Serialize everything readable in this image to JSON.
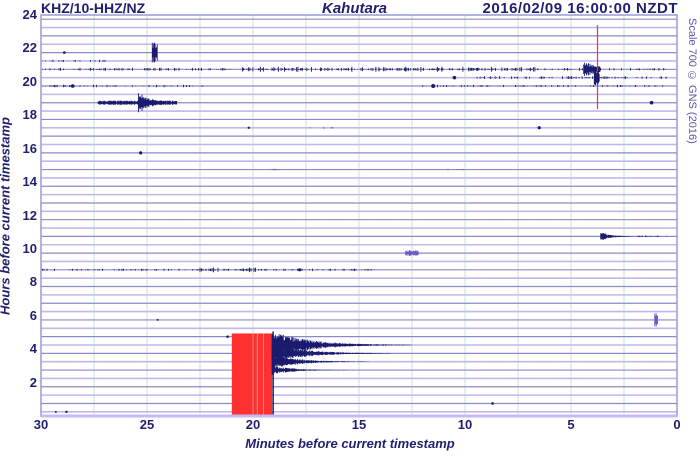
{
  "header": {
    "station": "KHZ/10-HHZ/NZ",
    "site": "Kahutara",
    "timestamp": "2016/02/09 16:00:00 NZDT",
    "scale_note": "Scale 700 © GNS (2016)"
  },
  "axes": {
    "xlabel": "Minutes before current timestamp",
    "ylabel": "Hours before current timestamp",
    "xticks": [
      "30",
      "25",
      "20",
      "15",
      "10",
      "5",
      "0"
    ],
    "yticks": [
      "24",
      "22",
      "20",
      "18",
      "16",
      "14",
      "12",
      "10",
      "8",
      "6",
      "4",
      "2"
    ]
  },
  "colors": {
    "trace": "#1a1a6e",
    "trace_light": "#6a5acd",
    "grid_vertical": "#c8e6c8",
    "trace_baseline": "#8a8ac8",
    "frame": "#9a9ad8",
    "clip_red": "#ff3030",
    "text": "#1f1f6e"
  },
  "chart_data": {
    "type": "seismogram-helicorder",
    "title": "KHZ/10-HHZ/NZ Kahutara 2016/02/09 16:00:00 NZDT",
    "xlabel": "Minutes before current timestamp",
    "ylabel": "Hours before current timestamp",
    "xlim": [
      30,
      0
    ],
    "ylim": [
      0,
      24
    ],
    "trace_count": 48,
    "trace_interval_minutes": 30,
    "grid": {
      "vertical_every_minutes": 2.5
    },
    "events": [
      {
        "name": "large local quake (clipped)",
        "hours_before": 4.5,
        "minutes_before_start": 21,
        "clipped_minutes": [
          21,
          19
        ],
        "coda_until_minutes": 12,
        "amplitude": "clipped"
      },
      {
        "name": "moderate event",
        "hours_before": 21.0,
        "minutes_before": 3.8,
        "amplitude": "clipped-spike"
      },
      {
        "name": "moderate event",
        "hours_before": 17.5,
        "minutes_before": 25,
        "amplitude": "large"
      },
      {
        "name": "small event",
        "hours_before": 20.7,
        "minutes_before": 24.6,
        "amplitude": "medium"
      },
      {
        "name": "small event",
        "hours_before": 11.0,
        "minutes_before": 3.5,
        "amplitude": "medium"
      },
      {
        "name": "small event",
        "hours_before": 6.0,
        "minutes_before": 1.0,
        "amplitude": "small"
      },
      {
        "name": "noisy trace",
        "hours_before": 21.0,
        "minutes_range": [
          21,
          0
        ],
        "amplitude": "noise"
      },
      {
        "name": "noisy trace",
        "hours_before": 9.0,
        "minutes_range": [
          27,
          14
        ],
        "amplitude": "noise"
      }
    ]
  }
}
